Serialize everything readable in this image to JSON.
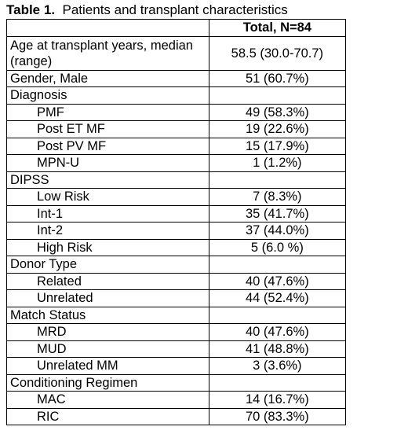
{
  "caption": {
    "label": "Table 1.",
    "text": "Patients and transplant characteristics"
  },
  "table": {
    "header": {
      "col1": "",
      "col2": "Total, N=84"
    },
    "rows": [
      {
        "label": "Age at transplant years, median (range)",
        "value": "58.5 (30.0-70.7)"
      },
      {
        "label": "Gender, Male",
        "value": "51 (60.7%)"
      },
      {
        "label": "Diagnosis",
        "value": ""
      },
      {
        "label": "PMF",
        "value": "49 (58.3%)"
      },
      {
        "label": "Post ET MF",
        "value": "19 (22.6%)"
      },
      {
        "label": "Post PV MF",
        "value": "15 (17.9%)"
      },
      {
        "label": "MPN-U",
        "value": "1 (1.2%)"
      },
      {
        "label": "DIPSS",
        "value": ""
      },
      {
        "label": "Low Risk",
        "value": "7 (8.3%)"
      },
      {
        "label": "Int-1",
        "value": "35 (41.7%)"
      },
      {
        "label": "Int-2",
        "value": "37 (44.0%)"
      },
      {
        "label": "High Risk",
        "value": "5 (6.0 %)"
      },
      {
        "label": "Donor Type",
        "value": ""
      },
      {
        "label": "Related",
        "value": "40 (47.6%)"
      },
      {
        "label": "Unrelated",
        "value": "44 (52.4%)"
      },
      {
        "label": "Match Status",
        "value": ""
      },
      {
        "label": "MRD",
        "value": "40 (47.6%)"
      },
      {
        "label": "MUD",
        "value": "41 (48.8%)"
      },
      {
        "label": "Unrelated MM",
        "value": "3 (3.6%)"
      },
      {
        "label": "Conditioning Regimen",
        "value": ""
      },
      {
        "label": "MAC",
        "value": "14 (16.7%)"
      },
      {
        "label": "RIC",
        "value": "70 (83.3%)"
      }
    ]
  }
}
